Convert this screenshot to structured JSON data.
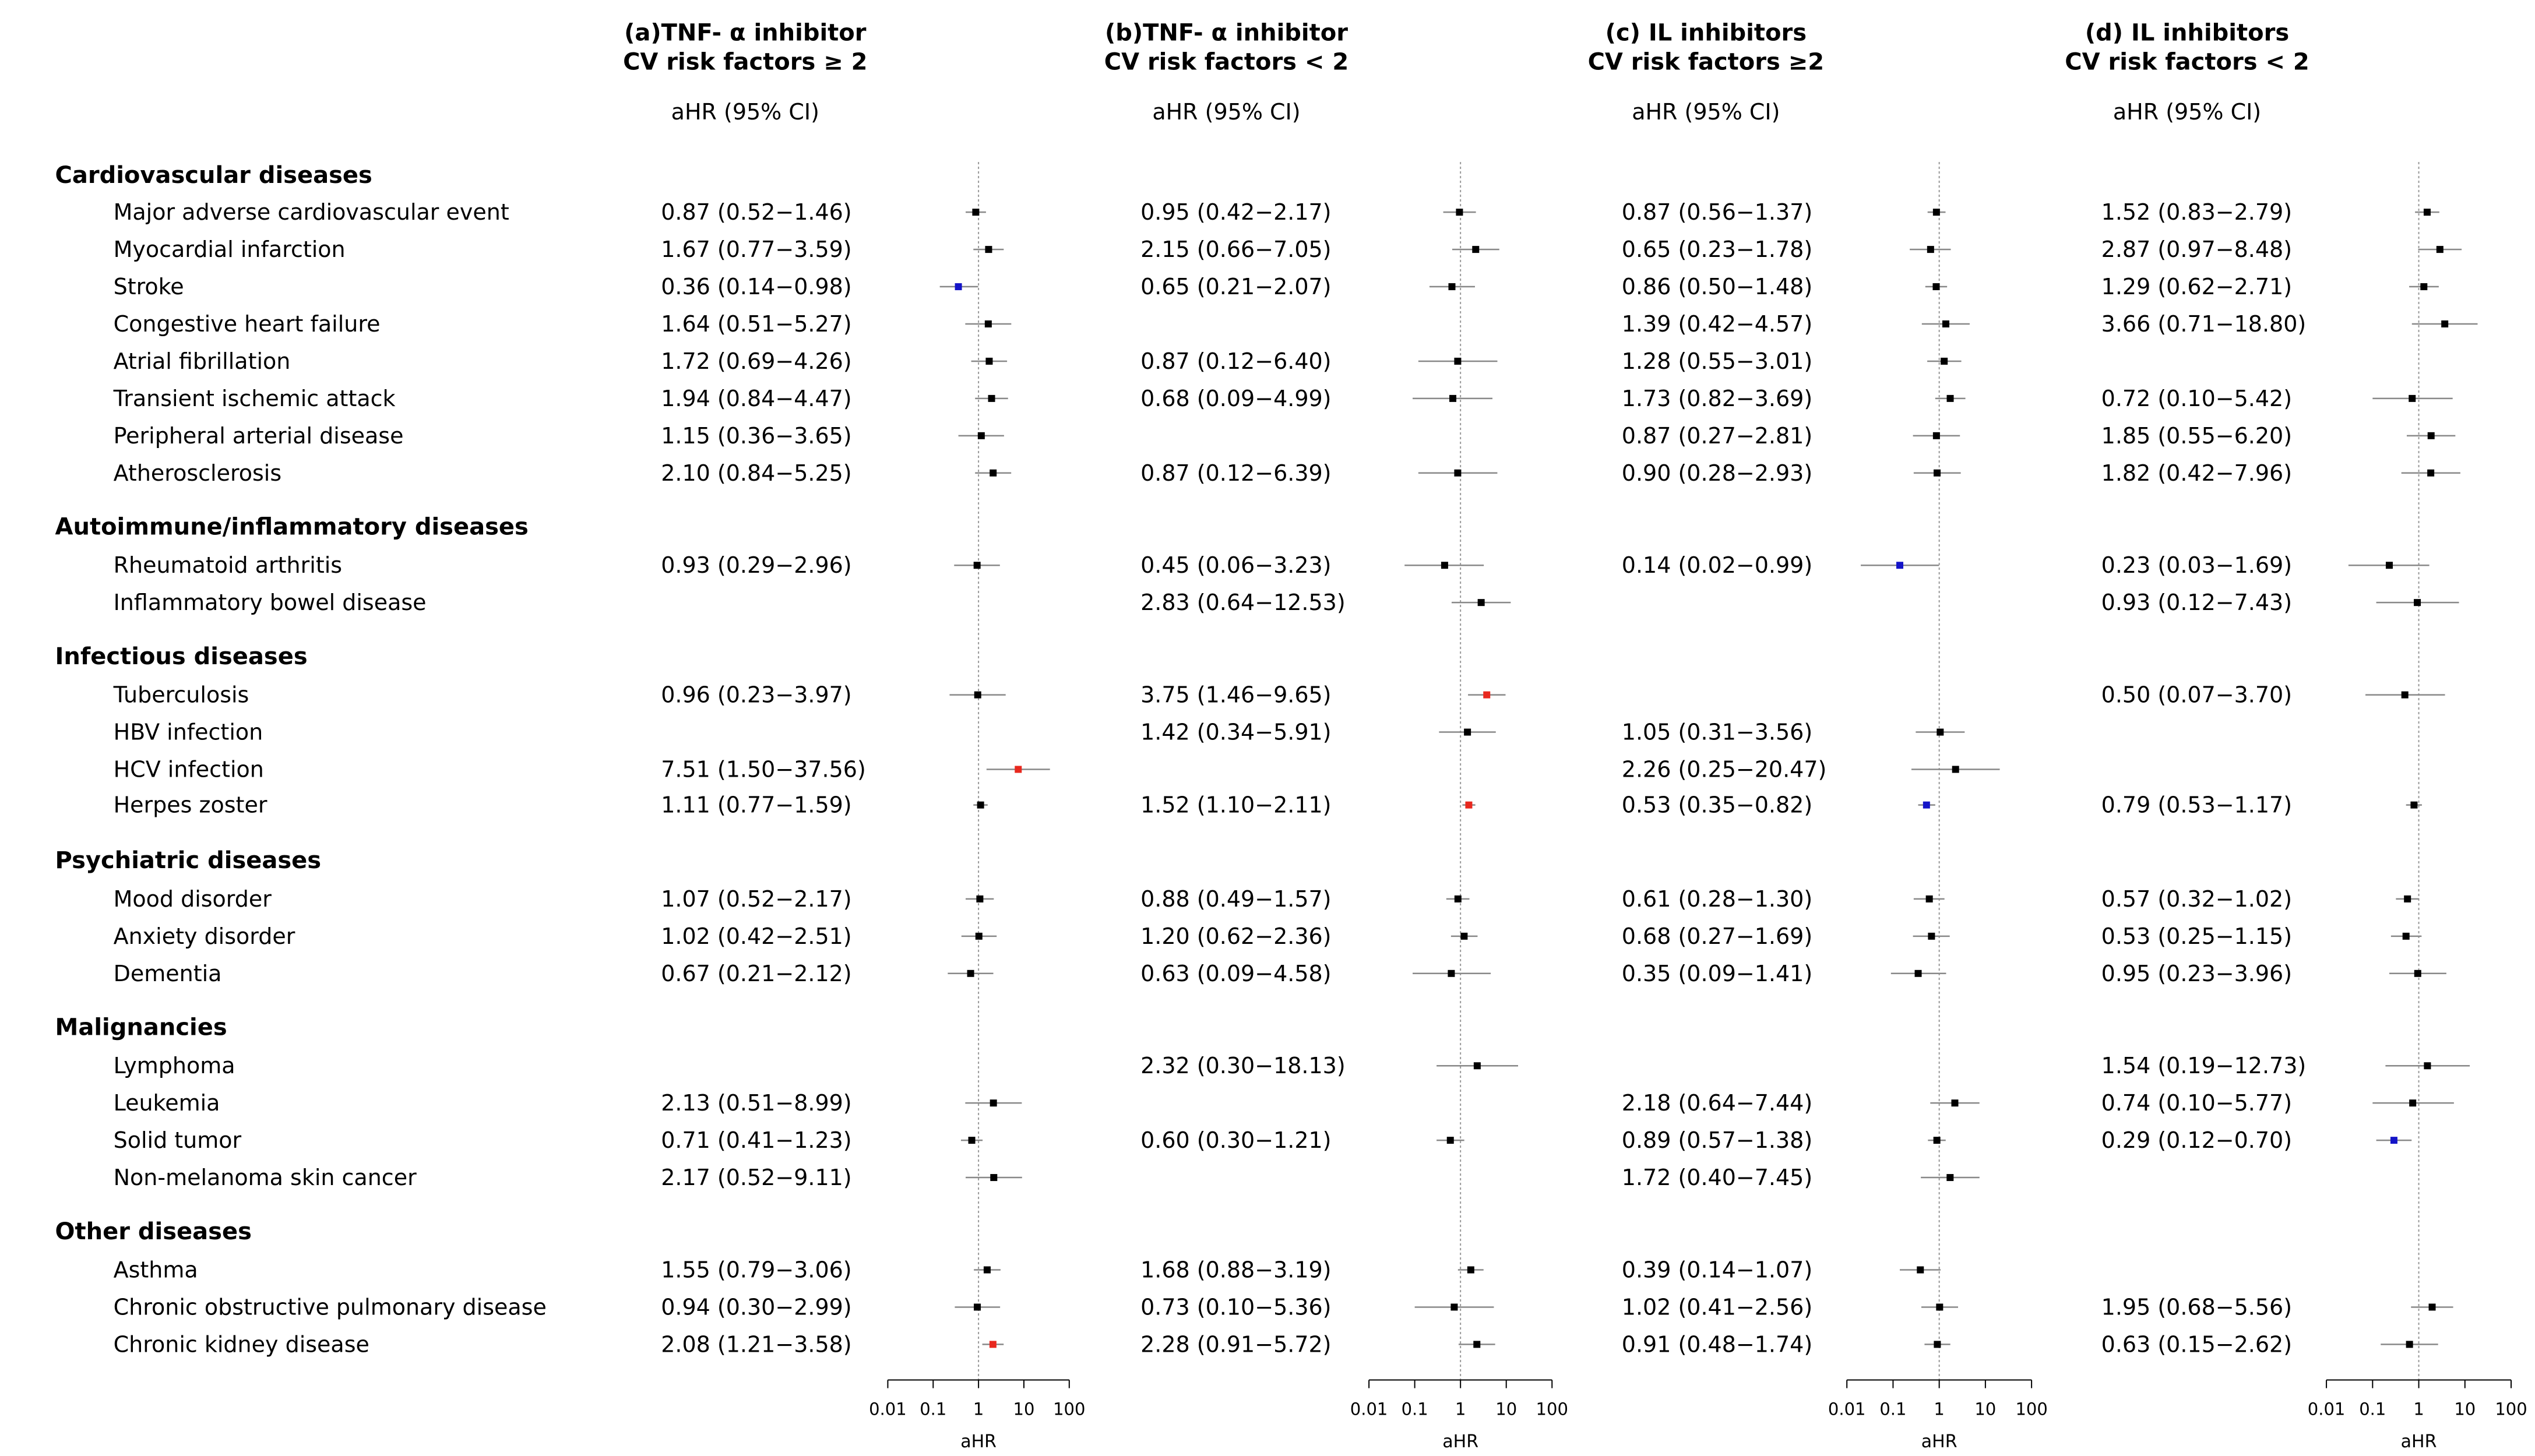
{
  "panels": [
    {
      "title_line1": "(a)TNF- α inhibitor",
      "title_line2": "CV risk factors ≥ 2",
      "value_header": "aHR (95% CI)",
      "values": [
        "0.87 (0.52−1.46)",
        "1.67 (0.77−3.59)",
        "0.36 (0.14−0.98)",
        "1.64 (0.51−5.27)",
        "1.72 (0.69−4.26)",
        "1.94 (0.84−4.47)",
        "1.15 (0.36−3.65)",
        "2.10 (0.84−5.25)",
        "0.93 (0.29−2.96)",
        "",
        "0.96 (0.23−3.97)",
        "",
        "7.51 (1.50−37.56)",
        "1.11 (0.77−1.59)",
        "1.07 (0.52−2.17)",
        "1.02 (0.42−2.51)",
        "0.67 (0.21−2.12)",
        "",
        "2.13 (0.51−8.99)",
        "0.71 (0.41−1.23)",
        "2.17 (0.52−9.11)",
        "1.55 (0.79−3.06)",
        "0.94 (0.30−2.99)",
        "2.08 (1.21−3.58)"
      ]
    },
    {
      "title_line1": "(b)TNF- α inhibitor",
      "title_line2": "CV risk factors < 2",
      "value_header": "aHR (95% CI)",
      "values": [
        "0.95 (0.42−2.17)",
        "2.15 (0.66−7.05)",
        "0.65 (0.21−2.07)",
        "",
        "0.87 (0.12−6.40)",
        "0.68 (0.09−4.99)",
        "",
        "0.87 (0.12−6.39)",
        "0.45 (0.06−3.23)",
        "2.83 (0.64−12.53)",
        "3.75 (1.46−9.65)",
        "1.42 (0.34−5.91)",
        "",
        "1.52 (1.10−2.11)",
        "0.88 (0.49−1.57)",
        "1.20 (0.62−2.36)",
        "0.63 (0.09−4.58)",
        "2.32  (0.30−18.13)",
        "",
        "0.60 (0.30−1.21)",
        "",
        "1.68 (0.88−3.19)",
        "0.73 (0.10−5.36)",
        "2.28 (0.91−5.72)"
      ]
    },
    {
      "title_line1": "(c) IL inhibitors",
      "title_line2": "CV risk factors ≥2",
      "value_header": "aHR (95% CI)",
      "values": [
        "0.87 (0.56−1.37)",
        "0.65 (0.23−1.78)",
        "0.86 (0.50−1.48)",
        "1.39 (0.42−4.57)",
        "1.28 (0.55−3.01)",
        "1.73 (0.82−3.69)",
        "0.87 (0.27−2.81)",
        "0.90 (0.28−2.93)",
        "0.14 (0.02−0.99)",
        "",
        "",
        "1.05 (0.31−3.56)",
        "2.26 (0.25−20.47)",
        "0.53 (0.35−0.82)",
        "0.61 (0.28−1.30)",
        "0.68 (0.27−1.69)",
        "0.35 (0.09−1.41)",
        "",
        "2.18 (0.64−7.44)",
        "0.89 (0.57−1.38)",
        "1.72 (0.40−7.45)",
        "0.39 (0.14−1.07)",
        "1.02 (0.41−2.56)",
        "0.91 (0.48−1.74)"
      ]
    },
    {
      "title_line1": "(d) IL inhibitors",
      "title_line2": "CV risk factors < 2",
      "value_header": "aHR (95% CI)",
      "values": [
        "1.52 (0.83−2.79)",
        "2.87 (0.97−8.48)",
        "1.29 (0.62−2.71)",
        "3.66 (0.71−18.80)",
        "",
        "0.72 (0.10−5.42)",
        "1.85 (0.55−6.20)",
        "1.82 (0.42−7.96)",
        "0.23 (0.03−1.69)",
        "0.93 (0.12−7.43)",
        "0.50 (0.07−3.70)",
        "",
        "",
        "0.79 (0.53−1.17)",
        "0.57 (0.32−1.02)",
        "0.53 (0.25−1.15)",
        "0.95 (0.23−3.96)",
        "1.54 (0.19−12.73)",
        "0.74 (0.10−5.77)",
        "0.29 (0.12−0.70)",
        "",
        "",
        "1.95 (0.68−5.56)",
        "0.63 (0.15−2.62)"
      ]
    }
  ],
  "categories": [
    {
      "name": "Cardiovascular diseases",
      "items": [
        "Major adverse cardiovascular event",
        "Myocardial infarction",
        "Stroke",
        "Congestive heart failure",
        "Atrial fibrillation",
        "Transient ischemic attack",
        "Peripheral arterial disease",
        "Atherosclerosis"
      ]
    },
    {
      "name": "Autoimmune/inflammatory diseases",
      "items": [
        "Rheumatoid arthritis",
        "Inflammatory bowel disease"
      ]
    },
    {
      "name": "Infectious diseases",
      "items": [
        "Tuberculosis",
        "HBV infection",
        "HCV infection",
        "Herpes zoster"
      ]
    },
    {
      "name": "Psychiatric diseases",
      "items": [
        "Mood disorder",
        "Anxiety disorder",
        "Dementia"
      ]
    },
    {
      "name": "Malignancies",
      "items": [
        "Lymphoma",
        "Leukemia",
        "Solid tumor",
        "Non-melanoma skin cancer"
      ]
    },
    {
      "name": "Other diseases",
      "items": [
        "Asthma",
        "Chronic obstructive pulmonary disease",
        "Chronic kidney disease"
      ]
    }
  ],
  "colors": {
    "neutral": "#000000",
    "increased": "#e8281e",
    "decreased": "#1414c8",
    "ci_line": "#888888",
    "ref_line": "#999999"
  },
  "chart_data": {
    "type": "forest",
    "x_scale": "log",
    "xlabel": "aHR",
    "x_ticks": [
      0.01,
      0.1,
      1,
      10,
      100
    ],
    "x_tick_labels": [
      "0.01",
      "0.1",
      "1",
      "10",
      "100"
    ],
    "reference_line": 1,
    "series": [
      {
        "name": "(a)TNF- α inhibitor CV risk factors ≥ 2",
        "estimates": [
          [
            0.87,
            0.52,
            1.46
          ],
          [
            1.67,
            0.77,
            3.59
          ],
          [
            0.36,
            0.14,
            0.98
          ],
          [
            1.64,
            0.51,
            5.27
          ],
          [
            1.72,
            0.69,
            4.26
          ],
          [
            1.94,
            0.84,
            4.47
          ],
          [
            1.15,
            0.36,
            3.65
          ],
          [
            2.1,
            0.84,
            5.25
          ],
          [
            0.93,
            0.29,
            2.96
          ],
          null,
          [
            0.96,
            0.23,
            3.97
          ],
          null,
          [
            7.51,
            1.5,
            37.56
          ],
          [
            1.11,
            0.77,
            1.59
          ],
          [
            1.07,
            0.52,
            2.17
          ],
          [
            1.02,
            0.42,
            2.51
          ],
          [
            0.67,
            0.21,
            2.12
          ],
          null,
          [
            2.13,
            0.51,
            8.99
          ],
          [
            0.71,
            0.41,
            1.23
          ],
          [
            2.17,
            0.52,
            9.11
          ],
          [
            1.55,
            0.79,
            3.06
          ],
          [
            0.94,
            0.3,
            2.99
          ],
          [
            2.08,
            1.21,
            3.58
          ]
        ]
      },
      {
        "name": "(b)TNF- α inhibitor CV risk factors < 2",
        "estimates": [
          [
            0.95,
            0.42,
            2.17
          ],
          [
            2.15,
            0.66,
            7.05
          ],
          [
            0.65,
            0.21,
            2.07
          ],
          null,
          [
            0.87,
            0.12,
            6.4
          ],
          [
            0.68,
            0.09,
            4.99
          ],
          null,
          [
            0.87,
            0.12,
            6.39
          ],
          [
            0.45,
            0.06,
            3.23
          ],
          [
            2.83,
            0.64,
            12.53
          ],
          [
            3.75,
            1.46,
            9.65
          ],
          [
            1.42,
            0.34,
            5.91
          ],
          null,
          [
            1.52,
            1.1,
            2.11
          ],
          [
            0.88,
            0.49,
            1.57
          ],
          [
            1.2,
            0.62,
            2.36
          ],
          [
            0.63,
            0.09,
            4.58
          ],
          [
            2.32,
            0.3,
            18.13
          ],
          null,
          [
            0.6,
            0.3,
            1.21
          ],
          null,
          [
            1.68,
            0.88,
            3.19
          ],
          [
            0.73,
            0.1,
            5.36
          ],
          [
            2.28,
            0.91,
            5.72
          ]
        ]
      },
      {
        "name": "(c) IL inhibitors CV risk factors ≥2",
        "estimates": [
          [
            0.87,
            0.56,
            1.37
          ],
          [
            0.65,
            0.23,
            1.78
          ],
          [
            0.86,
            0.5,
            1.48
          ],
          [
            1.39,
            0.42,
            4.57
          ],
          [
            1.28,
            0.55,
            3.01
          ],
          [
            1.73,
            0.82,
            3.69
          ],
          [
            0.87,
            0.27,
            2.81
          ],
          [
            0.9,
            0.28,
            2.93
          ],
          [
            0.14,
            0.02,
            0.99
          ],
          null,
          null,
          [
            1.05,
            0.31,
            3.56
          ],
          [
            2.26,
            0.25,
            20.47
          ],
          [
            0.53,
            0.35,
            0.82
          ],
          [
            0.61,
            0.28,
            1.3
          ],
          [
            0.68,
            0.27,
            1.69
          ],
          [
            0.35,
            0.09,
            1.41
          ],
          null,
          [
            2.18,
            0.64,
            7.44
          ],
          [
            0.89,
            0.57,
            1.38
          ],
          [
            1.72,
            0.4,
            7.45
          ],
          [
            0.39,
            0.14,
            1.07
          ],
          [
            1.02,
            0.41,
            2.56
          ],
          [
            0.91,
            0.48,
            1.74
          ]
        ]
      },
      {
        "name": "(d) IL inhibitors CV risk factors < 2",
        "estimates": [
          [
            1.52,
            0.83,
            2.79
          ],
          [
            2.87,
            0.97,
            8.48
          ],
          [
            1.29,
            0.62,
            2.71
          ],
          [
            3.66,
            0.71,
            18.8
          ],
          null,
          [
            0.72,
            0.1,
            5.42
          ],
          [
            1.85,
            0.55,
            6.2
          ],
          [
            1.82,
            0.42,
            7.96
          ],
          [
            0.23,
            0.03,
            1.69
          ],
          [
            0.93,
            0.12,
            7.43
          ],
          [
            0.5,
            0.07,
            3.7
          ],
          null,
          null,
          [
            0.79,
            0.53,
            1.17
          ],
          [
            0.57,
            0.32,
            1.02
          ],
          [
            0.53,
            0.25,
            1.15
          ],
          [
            0.95,
            0.23,
            3.96
          ],
          [
            1.54,
            0.19,
            12.73
          ],
          [
            0.74,
            0.1,
            5.77
          ],
          [
            0.29,
            0.12,
            0.7
          ],
          null,
          null,
          [
            1.95,
            0.68,
            5.56
          ],
          [
            0.63,
            0.15,
            2.62
          ]
        ]
      }
    ]
  }
}
